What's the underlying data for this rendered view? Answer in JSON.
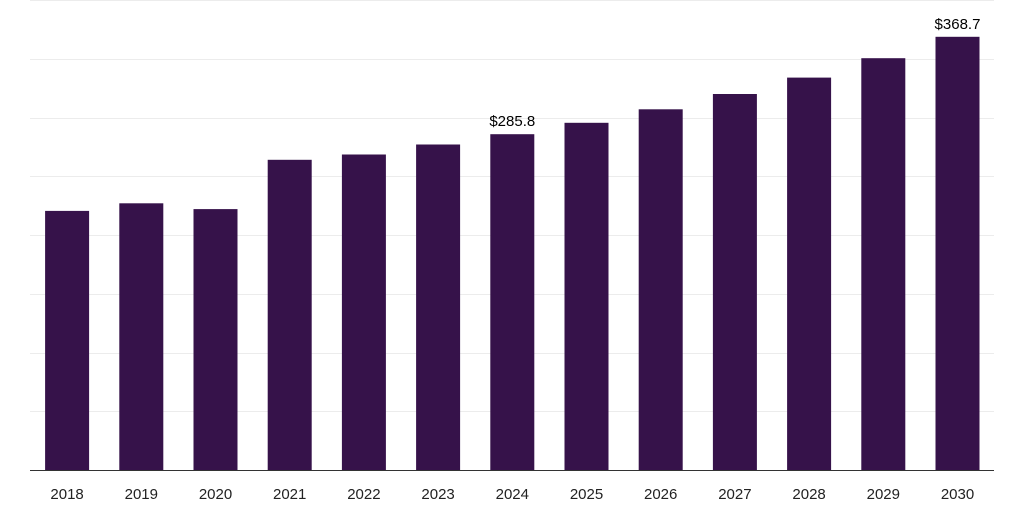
{
  "chart_data": {
    "type": "bar",
    "categories": [
      "2018",
      "2019",
      "2020",
      "2021",
      "2022",
      "2023",
      "2024",
      "2025",
      "2026",
      "2027",
      "2028",
      "2029",
      "2030"
    ],
    "values": [
      220.5,
      227.0,
      222.0,
      264.0,
      268.5,
      277.0,
      285.8,
      295.5,
      307.0,
      320.0,
      334.0,
      350.5,
      368.7
    ],
    "data_labels": [
      {
        "index": 6,
        "text": "$285.8"
      },
      {
        "index": 12,
        "text": "$368.7"
      }
    ],
    "ylim": [
      0,
      400
    ],
    "grid": true,
    "bar_color": "#36124a"
  }
}
